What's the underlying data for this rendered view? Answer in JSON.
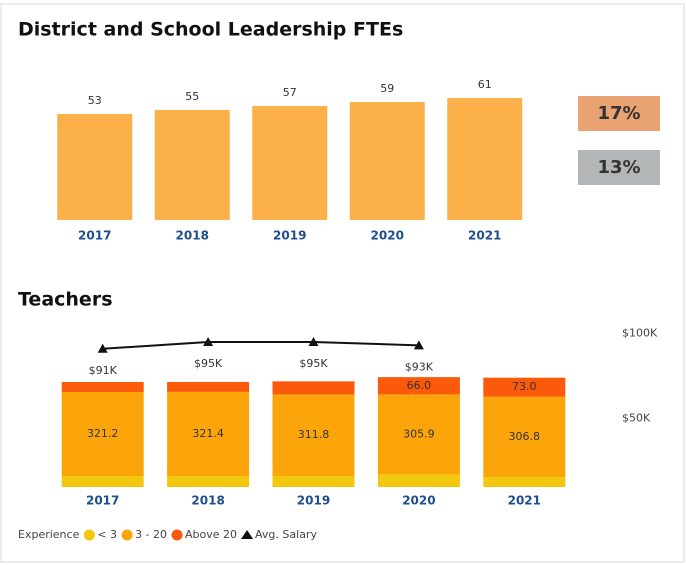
{
  "chart_data": [
    {
      "type": "bar",
      "title": "District and School Leadership FTEs",
      "categories": [
        "2017",
        "2018",
        "2019",
        "2020",
        "2021"
      ],
      "values": [
        53,
        55,
        57,
        59,
        61
      ],
      "color": "#fbb04a",
      "ylim": [
        0,
        80
      ]
    },
    {
      "type": "stacked-bar",
      "title": "Teachers",
      "legend_title": "Experience",
      "categories": [
        "2017",
        "2018",
        "2019",
        "2020",
        "2021"
      ],
      "ylim": [
        0,
        600
      ],
      "series": [
        {
          "name": "< 3",
          "color": "#f2c80f",
          "values": [
            42,
            42,
            42,
            48,
            38
          ]
        },
        {
          "name": "3 - 20",
          "color": "#fba50a",
          "values": [
            321.2,
            321.4,
            311.8,
            305.9,
            306.8
          ],
          "data_labels": true
        },
        {
          "name": "Above 20",
          "color": "#fb5a0a",
          "values": [
            38,
            38,
            50,
            66,
            73
          ],
          "value_labels": [
            null,
            null,
            null,
            "66.0",
            "73.0"
          ],
          "data_labels": true
        },
        {
          "name": "Avg. Salary",
          "type": "line",
          "axis": "y2",
          "color": "#111111",
          "values": [
            91000,
            95000,
            95000,
            93000,
            null
          ],
          "value_labels": [
            "$91K",
            "$95K",
            "$95K",
            "$93K",
            null
          ]
        }
      ],
      "y2lim": [
        10000,
        102000
      ],
      "y2ticks": [
        {
          "value": 50000,
          "label": "$50K"
        },
        {
          "value": 100000,
          "label": "$100K"
        }
      ]
    }
  ],
  "cards": [
    {
      "text": "17%",
      "color": "#e9a272"
    },
    {
      "text": "13%",
      "color": "#b3b6b7"
    }
  ]
}
